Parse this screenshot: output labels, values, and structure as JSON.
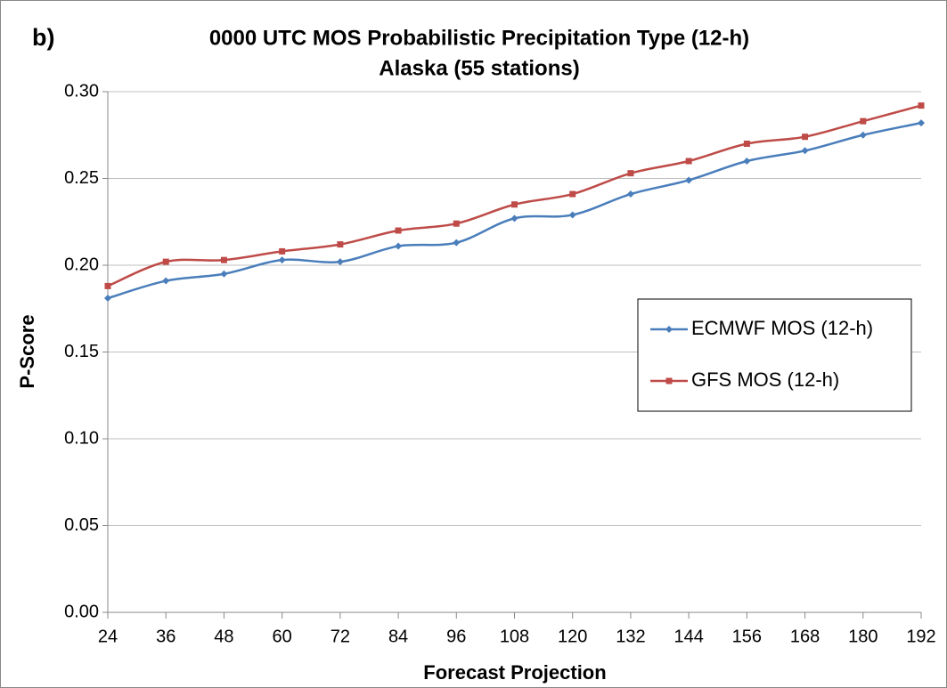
{
  "chart_data": {
    "type": "line",
    "panel_label": "b)",
    "title": "0000 UTC MOS Probabilistic Precipitation Type (12-h)",
    "subtitle": "Alaska (55 stations)",
    "x_label": "Forecast Projection",
    "y_label": "P-Score",
    "x": [
      24,
      36,
      48,
      60,
      72,
      84,
      96,
      108,
      120,
      132,
      144,
      156,
      168,
      180,
      192
    ],
    "series": [
      {
        "name": "ECMWF MOS (12-h)",
        "color": "#4a7ebb",
        "marker": "diamond",
        "values": [
          0.181,
          0.191,
          0.195,
          0.203,
          0.202,
          0.211,
          0.213,
          0.227,
          0.229,
          0.241,
          0.249,
          0.26,
          0.266,
          0.275,
          0.282
        ]
      },
      {
        "name": "GFS MOS (12-h)",
        "color": "#be4b48",
        "marker": "square",
        "values": [
          0.188,
          0.202,
          0.203,
          0.208,
          0.212,
          0.22,
          0.224,
          0.235,
          0.241,
          0.253,
          0.26,
          0.27,
          0.274,
          0.283,
          0.292
        ]
      }
    ],
    "xlim": [
      24,
      192
    ],
    "xticks": [
      24,
      36,
      48,
      60,
      72,
      84,
      96,
      108,
      120,
      132,
      144,
      156,
      168,
      180,
      192
    ],
    "ylim": [
      0,
      0.3
    ],
    "yticks": [
      {
        "value": 0,
        "label": "0.00"
      },
      0.05,
      {
        "value": 0.1,
        "label": "0.10"
      },
      0.15,
      {
        "value": 0.2,
        "label": "0.20"
      },
      0.25,
      {
        "value": 0.3,
        "label": "0.30"
      }
    ],
    "grid": true,
    "legend": "right"
  }
}
